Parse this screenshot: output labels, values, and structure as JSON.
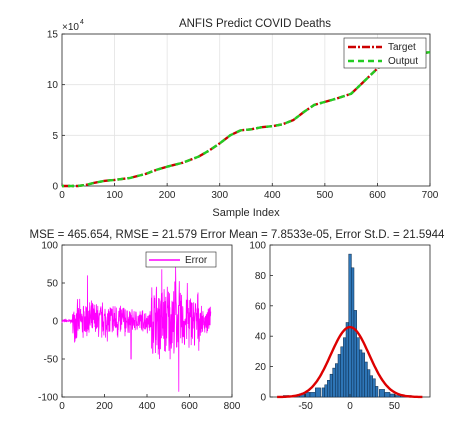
{
  "chart_data": [
    {
      "type": "line",
      "title": "ANFIS Predict COVID Deaths",
      "xlabel": "Sample Index",
      "ylabel": "",
      "y_exponent_label": "×10",
      "y_exponent": "4",
      "xlim": [
        0,
        700
      ],
      "ylim": [
        0,
        15
      ],
      "x_ticks": [
        0,
        100,
        200,
        300,
        400,
        500,
        600,
        700
      ],
      "y_ticks": [
        0,
        5,
        10,
        15
      ],
      "grid": true,
      "legend_position": "top-right",
      "series": [
        {
          "name": "Target",
          "color": "#cc0000",
          "style": "dash-dot",
          "x": [
            0,
            30,
            45,
            60,
            80,
            100,
            130,
            160,
            180,
            200,
            230,
            260,
            280,
            300,
            320,
            340,
            360,
            380,
            400,
            420,
            440,
            460,
            480,
            500,
            520,
            550,
            580,
            600,
            620,
            640,
            660,
            680,
            700
          ],
          "y": [
            0,
            0,
            0.1,
            0.3,
            0.5,
            0.6,
            0.8,
            1.2,
            1.6,
            1.9,
            2.3,
            2.9,
            3.5,
            4.2,
            5.0,
            5.5,
            5.6,
            5.8,
            5.9,
            6.1,
            6.5,
            7.3,
            8.0,
            8.3,
            8.6,
            9.1,
            10.6,
            11.6,
            12.4,
            12.9,
            13.0,
            13.1,
            13.2
          ]
        },
        {
          "name": "Output",
          "color": "#22cc22",
          "style": "dashed",
          "x": [
            0,
            30,
            45,
            60,
            80,
            100,
            130,
            160,
            180,
            200,
            230,
            260,
            280,
            300,
            320,
            340,
            360,
            380,
            400,
            420,
            440,
            460,
            480,
            500,
            520,
            550,
            580,
            600,
            620,
            640,
            660,
            680,
            700
          ],
          "y": [
            0,
            0,
            0.1,
            0.3,
            0.5,
            0.6,
            0.8,
            1.2,
            1.6,
            1.9,
            2.3,
            2.9,
            3.5,
            4.2,
            5.0,
            5.5,
            5.6,
            5.8,
            5.9,
            6.1,
            6.5,
            7.3,
            8.0,
            8.3,
            8.6,
            9.1,
            10.6,
            11.6,
            12.4,
            12.9,
            13.0,
            13.1,
            13.2
          ]
        }
      ]
    },
    {
      "type": "line",
      "title": "MSE = 465.654, RMSE = 21.579 Error Mean = 7.8533e-05, Error St.D. = 21.5944",
      "xlim": [
        0,
        800
      ],
      "ylim": [
        -100,
        100
      ],
      "x_ticks": [
        0,
        200,
        400,
        600,
        800
      ],
      "y_ticks": [
        -100,
        -50,
        0,
        50,
        100
      ],
      "grid": false,
      "legend_position": "top-right",
      "series": [
        {
          "name": "Error",
          "color": "#ff00ff",
          "sample_count": 700,
          "x_range": [
            0,
            700
          ],
          "envelope": [
            {
              "x": [
                0,
                50
              ],
              "amplitude": 3
            },
            {
              "x": [
                50,
                300
              ],
              "amplitude": 30
            },
            {
              "x": [
                300,
                420
              ],
              "amplitude": 18
            },
            {
              "x": [
                420,
                560
              ],
              "amplitude": 60
            },
            {
              "x": [
                560,
                650
              ],
              "amplitude": 45
            },
            {
              "x": [
                650,
                700
              ],
              "amplitude": 20
            }
          ],
          "peaks": [
            {
              "x": 120,
              "y": 60
            },
            {
              "x": 325,
              "y": -50
            },
            {
              "x": 470,
              "y": 68
            },
            {
              "x": 535,
              "y": 72
            },
            {
              "x": 550,
              "y": -93
            },
            {
              "x": 590,
              "y": 50
            }
          ]
        }
      ]
    },
    {
      "type": "bar",
      "subtype": "histogram",
      "xlim": [
        -90,
        90
      ],
      "ylim": [
        0,
        100
      ],
      "x_ticks": [
        -50,
        0,
        50
      ],
      "y_ticks": [
        0,
        20,
        40,
        60,
        80,
        100
      ],
      "grid": false,
      "bar_color": "#2e75b6",
      "bins": {
        "centers": [
          -72,
          -66,
          -60,
          -54,
          -48,
          -42,
          -36,
          -30,
          -27,
          -24,
          -21,
          -18,
          -15,
          -12,
          -9,
          -6,
          -3,
          0,
          3,
          6,
          9,
          12,
          15,
          18,
          21,
          24,
          27,
          30,
          36,
          42,
          48,
          54,
          60,
          66
        ],
        "counts": [
          1,
          0,
          1,
          2,
          3,
          3,
          6,
          6,
          8,
          11,
          15,
          19,
          22,
          28,
          33,
          39,
          49,
          94,
          85,
          57,
          39,
          31,
          29,
          23,
          18,
          14,
          12,
          7,
          5,
          3,
          2,
          1,
          1,
          1
        ]
      },
      "fit": {
        "type": "normal",
        "color": "#dd0000",
        "mean": 0,
        "std": 21.5944,
        "peak": 46
      }
    }
  ]
}
